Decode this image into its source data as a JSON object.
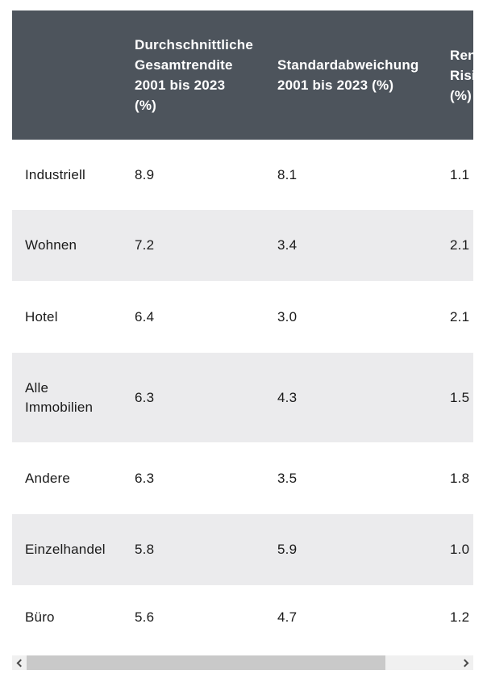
{
  "table": {
    "headers": {
      "col1": "",
      "col2": "Durchschnittliche\nGesamtrendite\n2001 bis 2023\n(%)",
      "col3": "Standardabweichung\n2001 bis 2023 (%)",
      "col4_clipped": "Ren\nRisi\n(%)"
    },
    "rows": [
      {
        "label": "Industriell",
        "avg_total_return": "8.9",
        "std_dev": "8.1",
        "ratio": "1.1"
      },
      {
        "label": "Wohnen",
        "avg_total_return": "7.2",
        "std_dev": "3.4",
        "ratio": "2.1"
      },
      {
        "label": "Hotel",
        "avg_total_return": "6.4",
        "std_dev": "3.0",
        "ratio": "2.1"
      },
      {
        "label": "Alle\nImmobilien",
        "avg_total_return": "6.3",
        "std_dev": "4.3",
        "ratio": "1.5"
      },
      {
        "label": "Andere",
        "avg_total_return": "6.3",
        "std_dev": "3.5",
        "ratio": "1.8"
      },
      {
        "label": "Einzelhandel",
        "avg_total_return": "5.8",
        "std_dev": "5.9",
        "ratio": "1.0"
      },
      {
        "label": "Büro",
        "avg_total_return": "5.6",
        "std_dev": "4.7",
        "ratio": "1.2"
      }
    ]
  },
  "scrollbar": {
    "left_icon": "chevron-left",
    "right_icon": "chevron-right"
  },
  "colors": {
    "header_bg": "#4d545c",
    "header_text": "#ffffff",
    "row_alt_bg": "#ebebed",
    "body_text": "#1a1a1a",
    "scrollbar_track": "#f0f0f0",
    "scrollbar_thumb": "#c9c9c9"
  }
}
